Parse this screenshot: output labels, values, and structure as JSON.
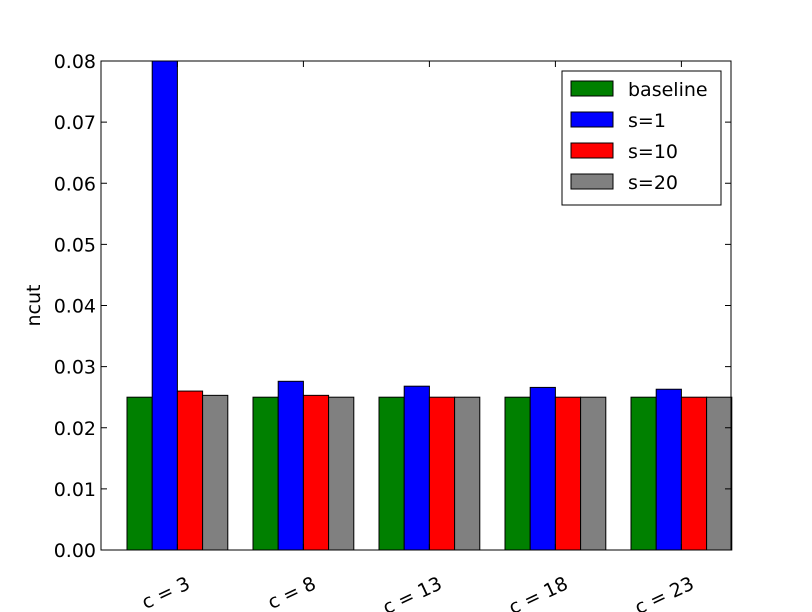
{
  "chart_data": {
    "type": "bar",
    "title": "",
    "xlabel": "",
    "ylabel": "ncut",
    "ylim": [
      0,
      0.08
    ],
    "yticks": [
      "0.00",
      "0.01",
      "0.02",
      "0.03",
      "0.04",
      "0.05",
      "0.06",
      "0.07",
      "0.08"
    ],
    "categories": [
      "c = 3",
      "c = 8",
      "c = 13",
      "c = 18",
      "c = 23"
    ],
    "series": [
      {
        "name": "baseline",
        "color": "#008000",
        "values": [
          0.025,
          0.025,
          0.025,
          0.025,
          0.025
        ]
      },
      {
        "name": "s=1",
        "color": "#0000ff",
        "values": [
          0.08,
          0.0276,
          0.0268,
          0.0266,
          0.0263
        ]
      },
      {
        "name": "s=10",
        "color": "#ff0000",
        "values": [
          0.026,
          0.0253,
          0.025,
          0.025,
          0.025
        ]
      },
      {
        "name": "s=20",
        "color": "#808080",
        "values": [
          0.0253,
          0.025,
          0.025,
          0.025,
          0.025
        ]
      }
    ],
    "legend": "top-right",
    "grid": false
  }
}
